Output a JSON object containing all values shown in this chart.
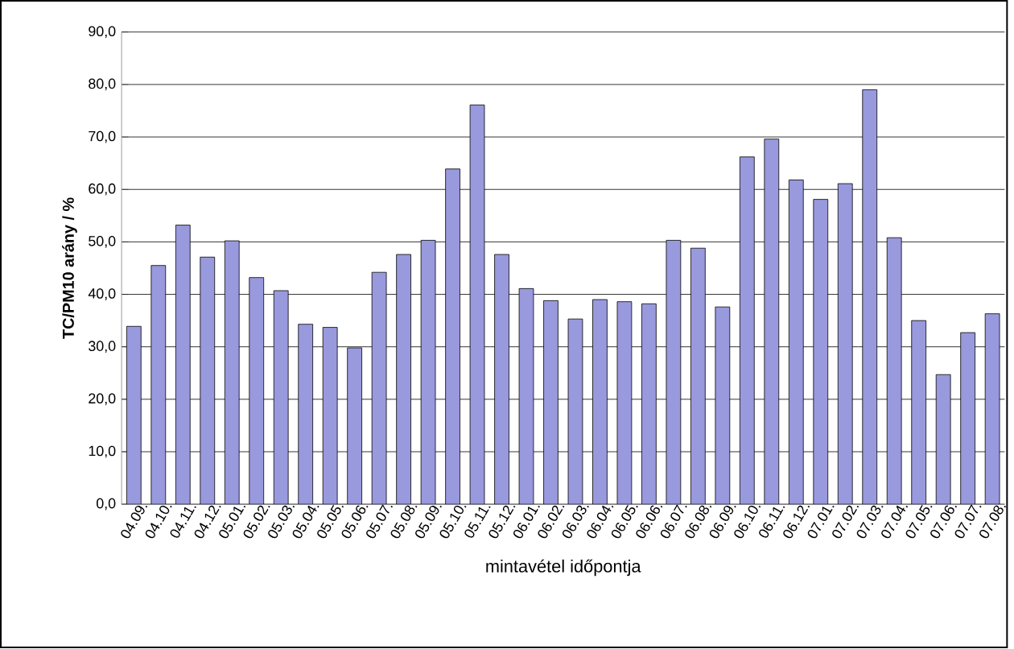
{
  "chart_data": {
    "type": "bar",
    "xlabel": "mintavétel időpontja",
    "ylabel": "TC/PM10 arány / %",
    "categories": [
      "04.09.",
      "04.10.",
      "04.11.",
      "04.12.",
      "05.01.",
      "05.02.",
      "05.03.",
      "05.04.",
      "05.05.",
      "05.06.",
      "05.07.",
      "05.08.",
      "05.09.",
      "05.10.",
      "05.11.",
      "05.12.",
      "06.01.",
      "06.02.",
      "06.03.",
      "06.04.",
      "06.05.",
      "06.06.",
      "06.07.",
      "06.08.",
      "06.09.",
      "06.10.",
      "06.11.",
      "06.12.",
      "07.01.",
      "07.02.",
      "07.03.",
      "07.04.",
      "07.05.",
      "07.06.",
      "07.07.",
      "07.08."
    ],
    "values": [
      33.9,
      45.5,
      53.2,
      47.1,
      50.2,
      43.2,
      40.7,
      34.3,
      33.7,
      29.8,
      44.2,
      47.6,
      50.3,
      63.9,
      76.1,
      47.6,
      41.1,
      38.8,
      35.3,
      39.0,
      38.6,
      38.2,
      50.3,
      48.8,
      37.6,
      66.2,
      69.6,
      61.8,
      58.1,
      61.1,
      79.0,
      50.8,
      35.0,
      24.7,
      32.7,
      36.3
    ],
    "color": "#9999dd",
    "ylim": [
      0,
      90
    ],
    "yticks": [
      {
        "value": 0,
        "label": "0,0"
      },
      {
        "value": 10,
        "label": "10,0"
      },
      {
        "value": 20,
        "label": "20,0"
      },
      {
        "value": 30,
        "label": "30,0"
      },
      {
        "value": 40,
        "label": "40,0"
      },
      {
        "value": 50,
        "label": "50,0"
      },
      {
        "value": 60,
        "label": "60,0"
      },
      {
        "value": 70,
        "label": "70,0"
      },
      {
        "value": 80,
        "label": "80,0"
      },
      {
        "value": 90,
        "label": "90,0"
      }
    ],
    "grid": "y"
  }
}
